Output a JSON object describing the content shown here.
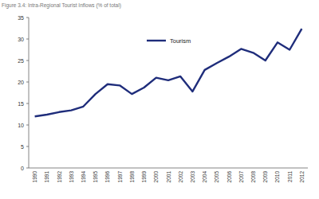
{
  "chart_data": {
    "type": "line",
    "title": "Figure 3.4: Intra-Regional Tourist Inflows (% of total)",
    "categories": [
      "1990",
      "1991",
      "1992",
      "1993",
      "1994",
      "1995",
      "1996",
      "1997",
      "1998",
      "1999",
      "2000",
      "2001",
      "2002",
      "2003",
      "2004",
      "2005",
      "2006",
      "2007",
      "2008",
      "2009",
      "2010",
      "2011",
      "2012"
    ],
    "series": [
      {
        "name": "Tourism",
        "color": "#1f2d7b",
        "values": [
          12,
          12.4,
          13,
          13.4,
          14.3,
          17.2,
          19.5,
          19.2,
          17.2,
          18.7,
          21,
          20.4,
          21.3,
          17.8,
          22.8,
          24.4,
          25.9,
          27.7,
          26.8,
          25,
          29.2,
          27.5,
          32.4
        ]
      }
    ],
    "ylim": [
      0,
      35
    ],
    "yticks": [
      0,
      5,
      10,
      15,
      20,
      25,
      30,
      35
    ],
    "grid": false,
    "legend": "top"
  }
}
